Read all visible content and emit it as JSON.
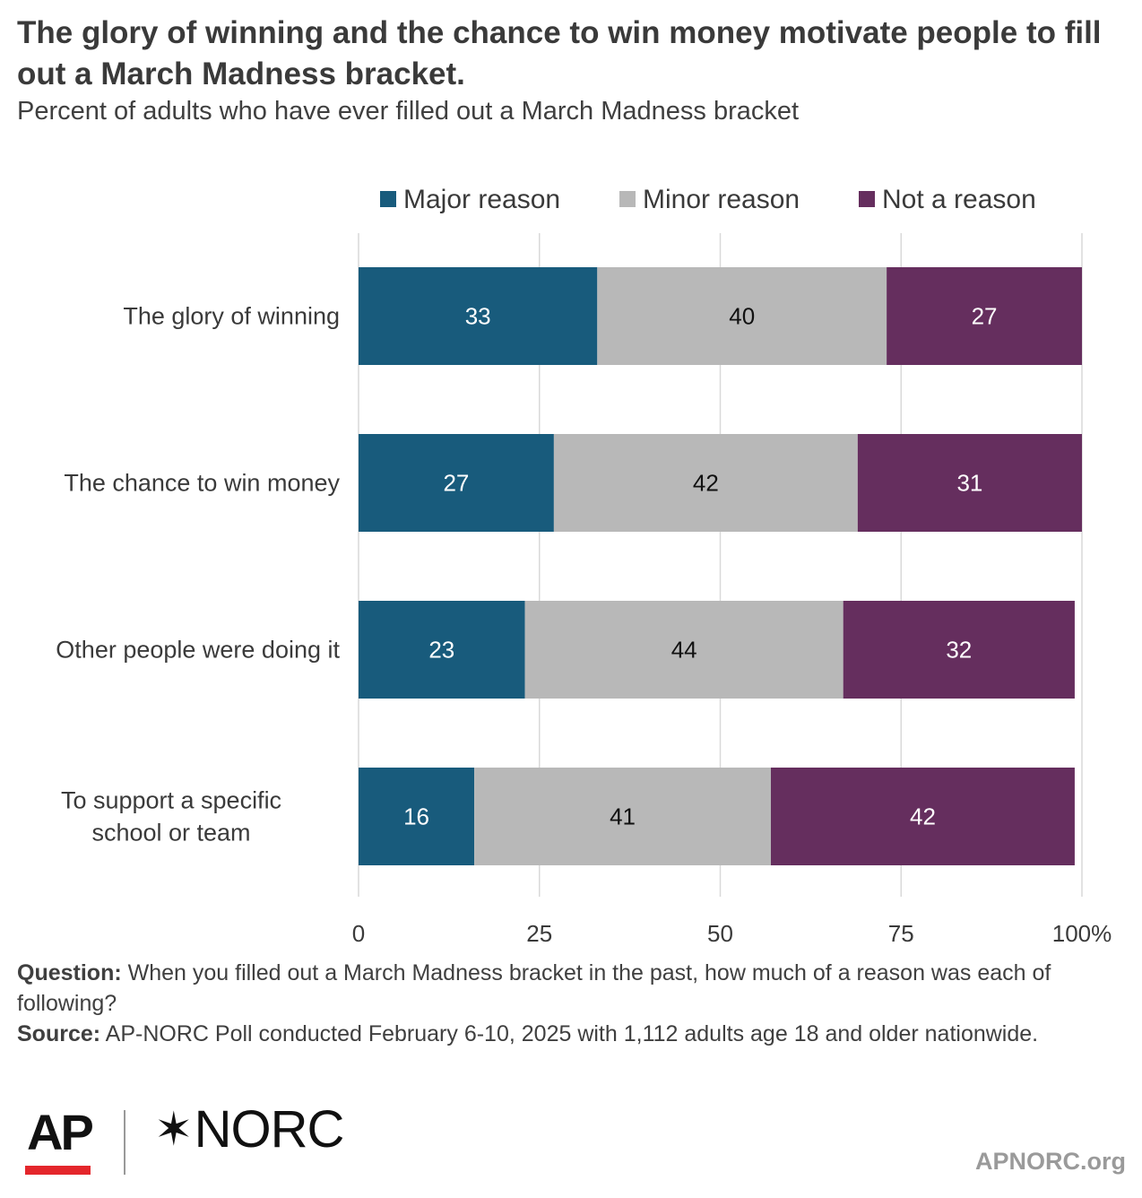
{
  "chart_data": {
    "type": "bar",
    "orientation": "horizontal-stacked",
    "title": "The glory of winning and the chance to win money motivate people to fill out a March Madness bracket.",
    "subtitle": "Percent of adults who have ever filled out a March Madness bracket",
    "categories": [
      "The glory of winning",
      "The chance to win money",
      "Other people were doing it",
      "To support a specific school or team"
    ],
    "series": [
      {
        "name": "Major reason",
        "color": "#185b7c",
        "label_color": "#ffffff",
        "values": [
          33,
          27,
          23,
          16
        ]
      },
      {
        "name": "Minor reason",
        "color": "#b8b8b8",
        "label_color": "#111111",
        "values": [
          40,
          42,
          44,
          41
        ]
      },
      {
        "name": "Not a reason",
        "color": "#652e5e",
        "label_color": "#ffffff",
        "values": [
          27,
          31,
          32,
          42
        ]
      }
    ],
    "xlim": [
      0,
      100
    ],
    "xticks": [
      "0",
      "25",
      "50",
      "75",
      "100%"
    ],
    "grid": true,
    "legend_position": "top"
  },
  "footnote": {
    "question_label": "Question:",
    "question_text": "When you filled out a March Madness bracket in the past, how much of a reason was each of following?",
    "source_label": "Source:",
    "source_text": "AP-NORC Poll conducted February 6-10, 2025 with 1,112 adults age 18 and older nationwide."
  },
  "branding": {
    "ap_logo": "AP",
    "norc_logo": "NORC",
    "site": "APNORC.org",
    "ap_accent": "#e4262b"
  }
}
